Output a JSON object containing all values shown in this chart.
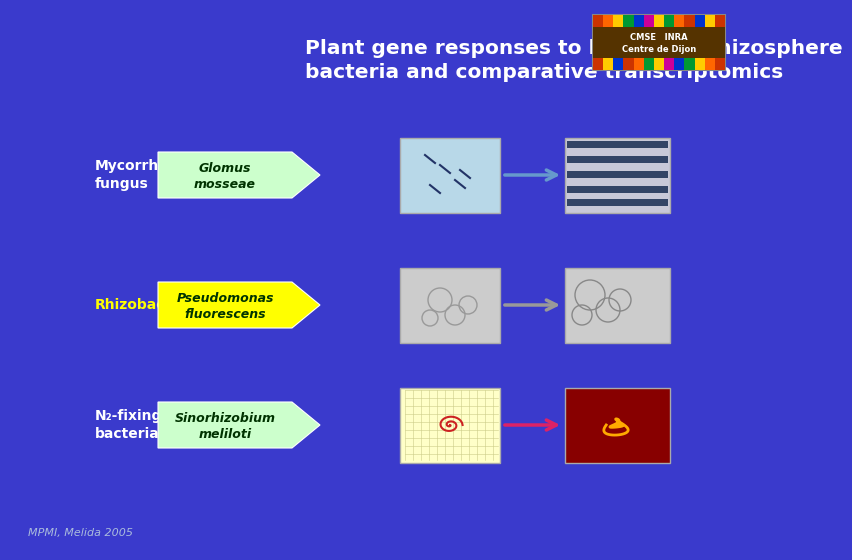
{
  "bg_color": "#3a3acc",
  "title_line1": "Plant gene responses to beneficial rhizosphere",
  "title_line2": "bacteria and comparative transcriptomics",
  "title_color": "#ffffff",
  "title_fontsize": 14.5,
  "rows": [
    {
      "label": "Mycorrhizal\nfungus",
      "label_color": "#ffffff",
      "arrow_label_line1": "Glomus",
      "arrow_label_line2": "mosseae",
      "arrow_bg": "#ccffcc",
      "arrow_text_color": "#003300",
      "connector_color": "#6699cc",
      "img1_bg": "#b8d8e8",
      "img2_bg": "#c8c8d8"
    },
    {
      "label": "Rhizobacteria",
      "label_color": "#ffff00",
      "arrow_label_line1": "Pseudomonas",
      "arrow_label_line2": "fluorescens",
      "arrow_bg": "#ffff00",
      "arrow_text_color": "#003300",
      "connector_color": "#999999",
      "img1_bg": "#cccccc",
      "img2_bg": "#cccccc"
    },
    {
      "label": "N₂-fixing\nbacteria",
      "label_color": "#ffffff",
      "arrow_label_line1": "Sinorhizobium",
      "arrow_label_line2": "meliloti",
      "arrow_bg": "#ccffcc",
      "arrow_text_color": "#003300",
      "connector_color": "#dd2266",
      "img1_bg": "#ffffc8",
      "img2_bg": "#880000"
    }
  ],
  "footer": "MPMI, Melida 2005",
  "footer_color": "#aabbdd",
  "footer_fontsize": 8,
  "logo_text_line1": "CMSE   INRA",
  "logo_text_line2": "Centre de Dijon"
}
